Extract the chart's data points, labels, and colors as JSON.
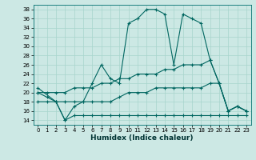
{
  "bg_color": "#cce8e4",
  "grid_color": "#a8d4cc",
  "line_color": "#006660",
  "xlabel": "Humidex (Indice chaleur)",
  "xlim": [
    -0.5,
    23.5
  ],
  "ylim": [
    13,
    39
  ],
  "yticks": [
    14,
    16,
    18,
    20,
    22,
    24,
    26,
    28,
    30,
    32,
    34,
    36,
    38
  ],
  "xticks": [
    0,
    1,
    2,
    3,
    4,
    5,
    6,
    7,
    8,
    9,
    10,
    11,
    12,
    13,
    14,
    15,
    16,
    17,
    18,
    19,
    20,
    21,
    22,
    23
  ],
  "series": [
    {
      "x": [
        0,
        1,
        2,
        3,
        4,
        5,
        6,
        7,
        8,
        9,
        10,
        11,
        12,
        13,
        14,
        15,
        16,
        17,
        18,
        19,
        20,
        21,
        22,
        23
      ],
      "y": [
        18,
        18,
        18,
        14,
        15,
        15,
        15,
        15,
        15,
        15,
        15,
        15,
        15,
        15,
        15,
        15,
        15,
        15,
        15,
        15,
        15,
        15,
        15,
        15
      ],
      "marker": "+",
      "markersize": 3,
      "linewidth": 0.8,
      "linestyle": "-"
    },
    {
      "x": [
        0,
        1,
        2,
        3,
        4,
        5,
        6,
        7,
        8,
        9,
        10,
        11,
        12,
        13,
        14,
        15,
        16,
        17,
        18,
        19,
        20,
        21,
        22,
        23
      ],
      "y": [
        20,
        19,
        18,
        18,
        18,
        18,
        18,
        18,
        18,
        19,
        20,
        20,
        20,
        21,
        21,
        21,
        21,
        21,
        21,
        22,
        22,
        16,
        17,
        16
      ],
      "marker": "+",
      "markersize": 3,
      "linewidth": 0.8,
      "linestyle": "-"
    },
    {
      "x": [
        0,
        1,
        2,
        3,
        4,
        5,
        6,
        7,
        8,
        9,
        10,
        11,
        12,
        13,
        14,
        15,
        16,
        17,
        18,
        19,
        20,
        21,
        22,
        23
      ],
      "y": [
        20,
        20,
        20,
        20,
        21,
        21,
        21,
        22,
        22,
        23,
        23,
        24,
        24,
        24,
        25,
        25,
        26,
        26,
        26,
        27,
        22,
        16,
        17,
        16
      ],
      "marker": "+",
      "markersize": 3,
      "linewidth": 0.8,
      "linestyle": "-"
    },
    {
      "x": [
        0,
        2,
        3,
        4,
        5,
        6,
        7,
        8,
        9,
        10,
        11,
        12,
        13,
        14,
        15,
        16,
        17,
        18,
        19,
        20,
        21,
        22,
        23
      ],
      "y": [
        21,
        18,
        14,
        17,
        18,
        22,
        26,
        23,
        22,
        35,
        36,
        38,
        38,
        37,
        26,
        37,
        36,
        35,
        27,
        22,
        16,
        17,
        16
      ],
      "marker": "+",
      "markersize": 3,
      "linewidth": 0.8,
      "linestyle": "-"
    }
  ]
}
